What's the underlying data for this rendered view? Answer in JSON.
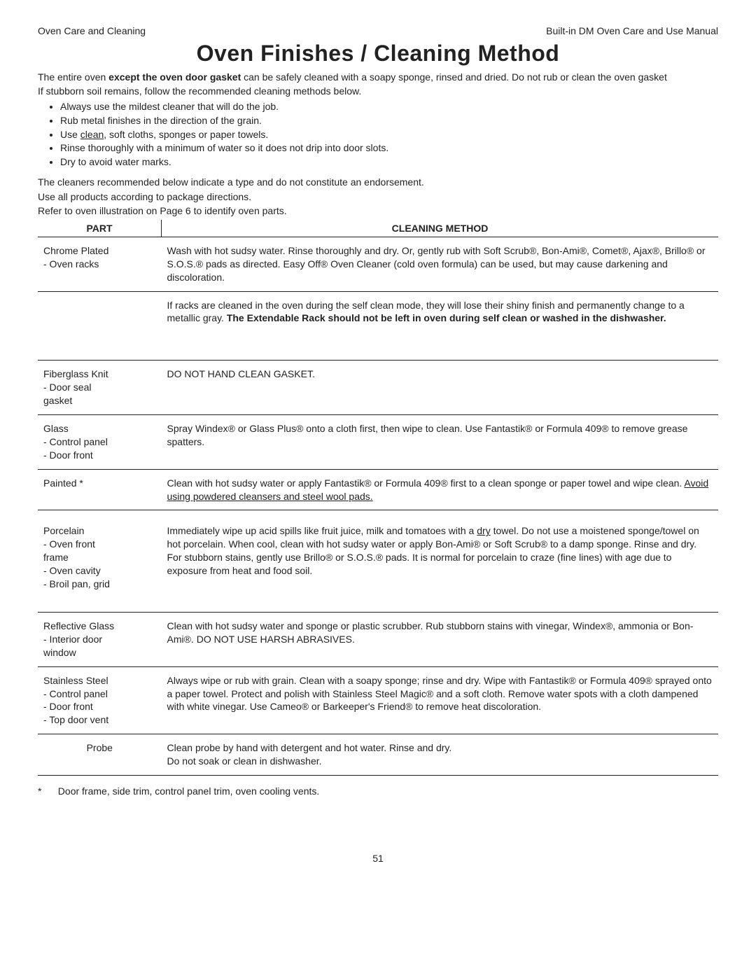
{
  "header": {
    "left": "Oven Care and Cleaning",
    "right": "Built-in DM Oven Care and Use Manual"
  },
  "title": "Oven Finishes / Cleaning Method",
  "intro": {
    "line1_pre": "The entire oven ",
    "line1_bold": "except the oven door gasket",
    "line1_post": " can be safely cleaned with a soapy sponge, rinsed and dried.  Do not rub or clean the oven gasket",
    "line2": "If stubborn soil remains, follow the recommended cleaning methods below."
  },
  "tips": [
    "Always use the mildest cleaner that will do the job.",
    "Rub metal finishes in the direction of the grain.",
    "Use clean, soft cloths, sponges or paper towels.",
    "Rinse thoroughly with a minimum of water so it does not drip into door slots.",
    "Dry to avoid water marks."
  ],
  "tips_underline_prefix": "Use ",
  "tips_underline_word": "clean",
  "tips_underline_suffix": ", soft cloths, sponges or paper towels.",
  "notes": {
    "n1": "The cleaners recommended below indicate a type and do not constitute an endorsement.",
    "n2": "Use all products according to package directions.",
    "n3": "Refer to oven illustration on Page 6 to identify oven parts."
  },
  "table": {
    "col1": "PART",
    "col2": "CLEANING METHOD",
    "rows": [
      {
        "part": "Chrome Plated\n  - Oven racks",
        "method_html": "Wash with hot sudsy water.  Rinse thoroughly and dry.  Or,  gently rub with Soft Scrub®, Bon-Ami®, Comet®, Ajax®, Brillo® or S.O.S.® pads as directed.  Easy Off® Oven Cleaner (cold oven formula) can be used, but may cause darkening and discoloration."
      },
      {
        "part": "",
        "method_html": "If racks are cleaned in the oven during the self clean mode, they will lose their shiny finish and permanently change to a metallic gray. <strong>The Extendable Rack should not be left in oven during self clean or washed in the dishwasher.</strong>"
      },
      {
        "part": "Fiberglass Knit\n  - Door seal\n    gasket",
        "method_html": "DO NOT HAND CLEAN GASKET."
      },
      {
        "part": "Glass\n  - Control panel\n  - Door front",
        "method_html": "Spray Windex® or Glass Plus® onto a cloth first, then wipe to clean.  Use Fantastik® or Formula 409® to remove grease spatters."
      },
      {
        "part": "Painted *",
        "method_html": "Clean with hot sudsy water or apply Fantastik® or Formula 409® first to a clean sponge or paper towel and wipe clean.  <u>Avoid using powdered cleansers and steel wool pads.</u>"
      },
      {
        "part": "Porcelain\n  - Oven front\n    frame\n  - Oven cavity\n  - Broil pan, grid",
        "method_html": "Immediately wipe up acid spills like fruit juice, milk and tomatoes with a <u>dry</u> towel.  Do not use a moistened sponge/towel on hot porcelain.  When cool, clean with hot sudsy water or apply Bon-Ami® or Soft Scrub® to a damp sponge.  Rinse and dry.  For stubborn stains, gently use Brillo® or S.O.S.® pads.  It is normal for porcelain to craze (fine lines) with age due to exposure from heat and food soil."
      },
      {
        "part": "Reflective Glass\n  - Interior door\n    window",
        "method_html": "Clean with hot sudsy water and sponge or plastic scrubber.  Rub stubborn stains with vinegar,  Windex®,  ammonia or Bon-Ami®.  DO NOT USE HARSH ABRASIVES."
      },
      {
        "part": "Stainless Steel\n  - Control panel\n  - Door front\n  - Top door vent",
        "method_html": "Always wipe or rub with grain.  Clean with a soapy sponge; rinse and dry.  Wipe with Fantastik® or Formula 409® sprayed onto a paper towel.  Protect and polish with Stainless Steel Magic® and a soft cloth.  Remove water spots with a cloth dampened with white vinegar. Use Cameo® or Barkeeper's Friend® to remove heat discoloration."
      },
      {
        "part": "Probe",
        "method_html": "Clean probe by hand with detergent and hot water. Rinse and dry.\nDo not soak or clean in dishwasher."
      }
    ]
  },
  "footnote": {
    "star": "*",
    "text": "Door frame, side trim, control panel trim, oven cooling vents."
  },
  "page_number": "51"
}
